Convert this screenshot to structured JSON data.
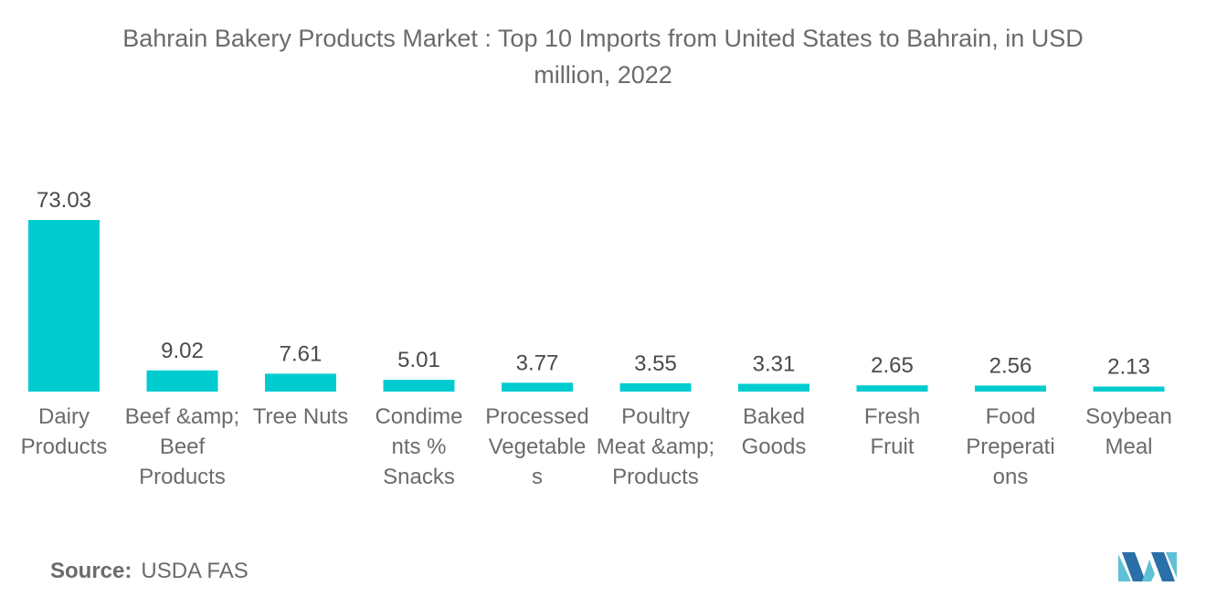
{
  "chart_data": {
    "type": "bar",
    "title_lines": [
      "Bahrain Bakery Products Market : Top 10 Imports from United States to Bahrain, in USD",
      "million, 2022"
    ],
    "categories": [
      [
        "Dairy",
        "Products"
      ],
      [
        "Beef &amp;",
        "Beef",
        "Products"
      ],
      [
        "Tree Nuts"
      ],
      [
        "Condime",
        "nts %",
        "Snacks"
      ],
      [
        "Processed",
        "Vegetable",
        "s"
      ],
      [
        "Poultry",
        "Meat &amp;",
        "Products"
      ],
      [
        "Baked",
        "Goods"
      ],
      [
        "Fresh",
        "Fruit"
      ],
      [
        "Food",
        "Preperati",
        "ons"
      ],
      [
        "Soybean",
        "Meal"
      ]
    ],
    "values": [
      73.03,
      9.02,
      7.61,
      5.01,
      3.77,
      3.55,
      3.31,
      2.65,
      2.56,
      2.13
    ],
    "value_labels": [
      "73.03",
      "9.02",
      "7.61",
      "5.01",
      "3.77",
      "3.55",
      "3.31",
      "2.65",
      "2.56",
      "2.13"
    ],
    "ylim": [
      0,
      73.03
    ],
    "grid": false,
    "legend": "none",
    "bar_color": "#00cccf"
  },
  "source": {
    "label": "Source:",
    "value": "USDA FAS"
  },
  "logo": {
    "icon": "mordor-intelligence-logo-icon",
    "colors": [
      "#5fc1d6",
      "#2a6fa8"
    ]
  }
}
